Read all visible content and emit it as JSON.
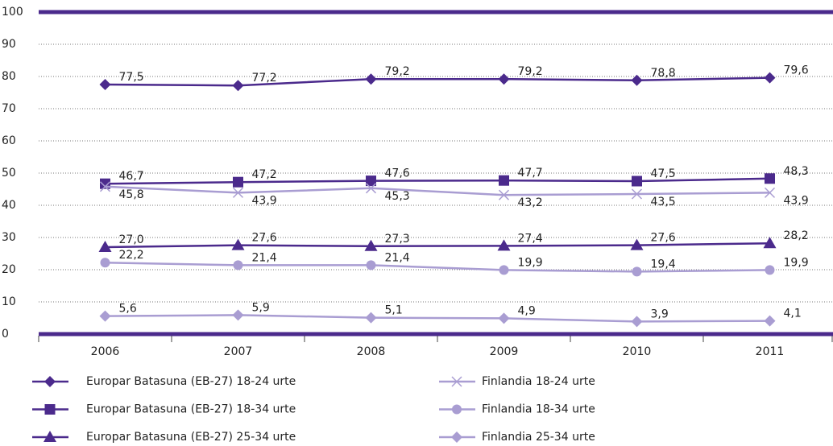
{
  "chart_data": {
    "type": "line",
    "categories": [
      "2006",
      "2007",
      "2008",
      "2009",
      "2010",
      "2011"
    ],
    "ylim": [
      0,
      100
    ],
    "yticks": [
      0,
      10,
      20,
      30,
      40,
      50,
      60,
      70,
      80,
      90,
      100
    ],
    "grid": true,
    "series": [
      {
        "name": "Europar Batasuna (EB-27) 18-24 urte",
        "color": "#4b2a8c",
        "marker": "diamond",
        "values": [
          77.5,
          77.2,
          79.2,
          79.2,
          78.8,
          79.6
        ],
        "value_labels": [
          "77,5",
          "77,2",
          "79,2",
          "79,2",
          "78,8",
          "79,6"
        ]
      },
      {
        "name": "Europar Batasuna (EB-27) 18-34 urte",
        "color": "#4b2a8c",
        "marker": "square",
        "values": [
          46.7,
          47.2,
          47.6,
          47.7,
          47.5,
          48.3
        ],
        "value_labels": [
          "46,7",
          "47,2",
          "47,6",
          "47,7",
          "47,5",
          "48,3"
        ]
      },
      {
        "name": "Europar Batasuna (EB-27) 25-34 urte",
        "color": "#4b2a8c",
        "marker": "triangle",
        "values": [
          27.0,
          27.6,
          27.3,
          27.4,
          27.6,
          28.2
        ],
        "value_labels": [
          "27,0",
          "27,6",
          "27,3",
          "27,4",
          "27,6",
          "28,2"
        ]
      },
      {
        "name": "Finlandia 18-24 urte",
        "color": "#a99dd2",
        "marker": "x",
        "values": [
          45.8,
          43.9,
          45.3,
          43.2,
          43.5,
          43.9
        ],
        "value_labels": [
          "45,8",
          "43,9",
          "45,3",
          "43,2",
          "43,5",
          "43,9"
        ]
      },
      {
        "name": "Finlandia 18-34 urte",
        "color": "#a99dd2",
        "marker": "circle",
        "values": [
          22.2,
          21.4,
          21.4,
          19.9,
          19.4,
          19.9
        ],
        "value_labels": [
          "22,2",
          "21,4",
          "21,4",
          "19,9",
          "19,4",
          "19,9"
        ]
      },
      {
        "name": "Finlandia 25-34 urte",
        "color": "#a99dd2",
        "marker": "diamond",
        "values": [
          5.6,
          5.9,
          5.1,
          4.9,
          3.9,
          4.1
        ],
        "value_labels": [
          "5,6",
          "5,9",
          "5,1",
          "4,9",
          "3,9",
          "4,1"
        ]
      }
    ]
  }
}
